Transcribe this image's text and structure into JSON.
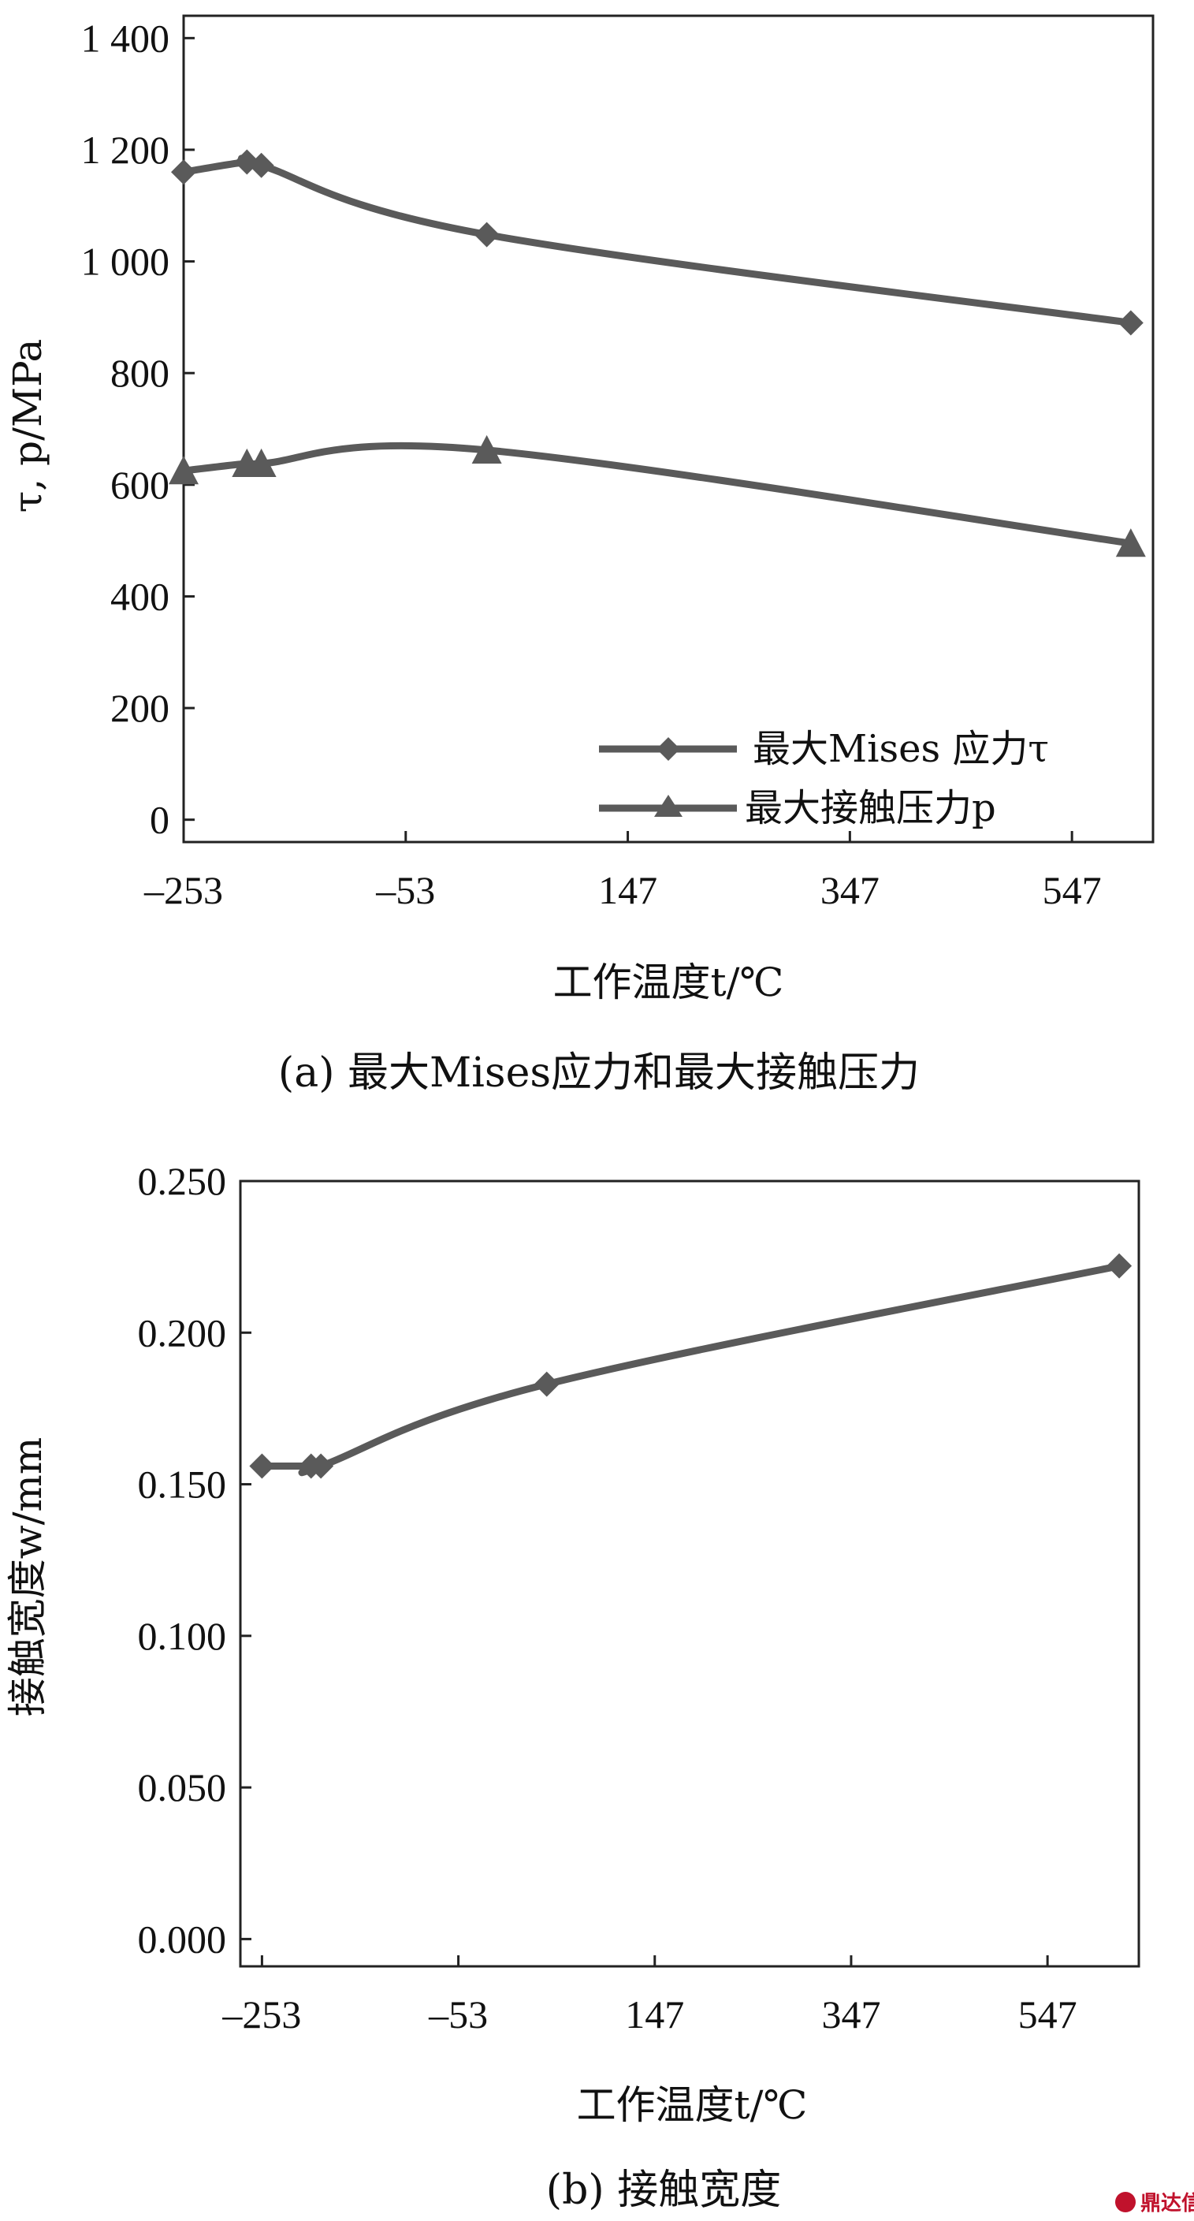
{
  "chart_data": [
    {
      "type": "line",
      "x": [
        -253,
        -196,
        -183,
        20,
        600
      ],
      "series": [
        {
          "name": "最大Mises 应力τ",
          "marker": "diamond",
          "values": [
            1160,
            1178,
            1172,
            1048,
            890
          ]
        },
        {
          "name": "最大接触压力p",
          "marker": "triangle",
          "values": [
            625,
            638,
            638,
            662,
            495
          ]
        }
      ],
      "xticks": [
        "–253",
        "–53",
        "147",
        "347",
        "547"
      ],
      "xtick_values": [
        -253,
        -53,
        147,
        347,
        547
      ],
      "yticks": [
        "1 400",
        "1 200",
        "1 000",
        "800",
        "600",
        "400",
        "200",
        "0"
      ],
      "ytick_values": [
        1400,
        1200,
        1000,
        800,
        600,
        400,
        200,
        0
      ],
      "xlim": [
        -253,
        620
      ],
      "ylim": [
        -40,
        1440
      ],
      "xlabel": "工作温度t/℃",
      "ylabel": "τ, p/MPa",
      "caption": "(a) 最大Mises应力和最大接触压力",
      "legend_position": "bottom-right",
      "grid": false,
      "line_color": "#5a5a5a"
    },
    {
      "type": "line",
      "x": [
        -253,
        -203,
        -193,
        37,
        620
      ],
      "series": [
        {
          "name": "",
          "marker": "diamond",
          "values": [
            0.156,
            0.156,
            0.156,
            0.183,
            0.222
          ]
        }
      ],
      "xticks": [
        "–253",
        "–53",
        "147",
        "347",
        "547"
      ],
      "xtick_values": [
        -253,
        -53,
        147,
        347,
        547
      ],
      "yticks": [
        "0.250",
        "0.200",
        "0.150",
        "0.100",
        "0.050",
        "0.000"
      ],
      "ytick_values": [
        0.25,
        0.2,
        0.15,
        0.1,
        0.05,
        0
      ],
      "xlim": [
        -275,
        640
      ],
      "ylim": [
        -0.009,
        0.25
      ],
      "xlabel": "工作温度t/℃",
      "ylabel": "接触宽度w/mm",
      "caption": "(b) 接触宽度",
      "grid": false,
      "line_color": "#5a5a5a"
    }
  ],
  "watermark": "鼎达信"
}
